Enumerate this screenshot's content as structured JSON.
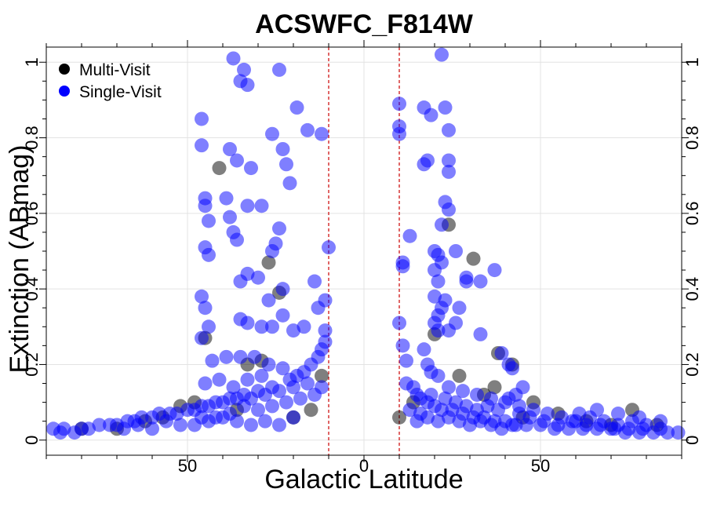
{
  "chart_data": {
    "type": "scatter",
    "title": "ACSWFC_F814W",
    "xlabel": "Galactic Latitude",
    "ylabel": "Extinction (ABmag)",
    "xlim": [
      -90,
      90
    ],
    "ylim": [
      -0.04,
      1.04
    ],
    "x_ticks": [
      -50,
      0,
      50
    ],
    "x_tick_labels": [
      "50",
      "0",
      "50"
    ],
    "y_ticks": [
      0,
      0.2,
      0.4,
      0.6,
      0.8,
      1
    ],
    "y_tick_labels": [
      "0",
      "0.2",
      "0.4",
      "0.6",
      "0.8",
      "1"
    ],
    "grid": true,
    "vlines": [
      -10,
      10
    ],
    "vline_color": "#cc0000",
    "legend_position": "top-left",
    "series": [
      {
        "name": "Multi-Visit",
        "color": "#000000",
        "points": [
          [
            -52,
            0.09
          ],
          [
            -48,
            0.1
          ],
          [
            -45,
            0.27
          ],
          [
            -41,
            0.72
          ],
          [
            -27,
            0.47
          ],
          [
            -24,
            0.39
          ],
          [
            -33,
            0.2
          ],
          [
            -29,
            0.21
          ],
          [
            -20,
            0.06
          ],
          [
            -15,
            0.08
          ],
          [
            -57,
            0.06
          ],
          [
            -62,
            0.05
          ],
          [
            -70,
            0.03
          ],
          [
            -80,
            0.03
          ],
          [
            -36,
            0.08
          ],
          [
            -12,
            0.17
          ],
          [
            10,
            0.06
          ],
          [
            24,
            0.57
          ],
          [
            31,
            0.48
          ],
          [
            38,
            0.23
          ],
          [
            42,
            0.2
          ],
          [
            37,
            0.14
          ],
          [
            48,
            0.1
          ],
          [
            55,
            0.07
          ],
          [
            63,
            0.05
          ],
          [
            76,
            0.08
          ],
          [
            83,
            0.04
          ],
          [
            20,
            0.28
          ],
          [
            27,
            0.17
          ],
          [
            34,
            0.12
          ],
          [
            45,
            0.06
          ],
          [
            14,
            0.1
          ],
          [
            70,
            0.04
          ]
        ]
      },
      {
        "name": "Single-Visit",
        "color": "#0000ff",
        "points": [
          [
            -46,
            0.85
          ],
          [
            -46,
            0.78
          ],
          [
            -45,
            0.64
          ],
          [
            -45,
            0.62
          ],
          [
            -44,
            0.58
          ],
          [
            -45,
            0.51
          ],
          [
            -44,
            0.49
          ],
          [
            -46,
            0.38
          ],
          [
            -45,
            0.35
          ],
          [
            -44,
            0.3
          ],
          [
            -46,
            0.27
          ],
          [
            -37,
            1.01
          ],
          [
            -34,
            0.98
          ],
          [
            -35,
            0.95
          ],
          [
            -33,
            0.94
          ],
          [
            -24,
            0.98
          ],
          [
            -19,
            0.88
          ],
          [
            -16,
            0.82
          ],
          [
            -12,
            0.81
          ],
          [
            -10,
            0.51
          ],
          [
            -38,
            0.77
          ],
          [
            -36,
            0.74
          ],
          [
            -32,
            0.72
          ],
          [
            -39,
            0.64
          ],
          [
            -33,
            0.62
          ],
          [
            -29,
            0.62
          ],
          [
            -26,
            0.81
          ],
          [
            -23,
            0.77
          ],
          [
            -22,
            0.73
          ],
          [
            -21,
            0.68
          ],
          [
            -24,
            0.56
          ],
          [
            -25,
            0.52
          ],
          [
            -26,
            0.5
          ],
          [
            -38,
            0.59
          ],
          [
            -37,
            0.55
          ],
          [
            -36,
            0.53
          ],
          [
            -35,
            0.42
          ],
          [
            -33,
            0.44
          ],
          [
            -30,
            0.43
          ],
          [
            -27,
            0.37
          ],
          [
            -23,
            0.4
          ],
          [
            -35,
            0.32
          ],
          [
            -33,
            0.31
          ],
          [
            -29,
            0.3
          ],
          [
            -26,
            0.3
          ],
          [
            -23,
            0.33
          ],
          [
            -20,
            0.29
          ],
          [
            -17,
            0.3
          ],
          [
            -13,
            0.35
          ],
          [
            -11,
            0.37
          ],
          [
            -14,
            0.42
          ],
          [
            -43,
            0.21
          ],
          [
            -39,
            0.22
          ],
          [
            -35,
            0.22
          ],
          [
            -31,
            0.22
          ],
          [
            -27,
            0.2
          ],
          [
            -23,
            0.19
          ],
          [
            -11,
            0.26
          ],
          [
            -11,
            0.29
          ],
          [
            -12,
            0.24
          ],
          [
            -13,
            0.22
          ],
          [
            -15,
            0.2
          ],
          [
            -17,
            0.18
          ],
          [
            -19,
            0.17
          ],
          [
            -21,
            0.16
          ],
          [
            -26,
            0.14
          ],
          [
            -30,
            0.13
          ],
          [
            -34,
            0.12
          ],
          [
            -38,
            0.11
          ],
          [
            -42,
            0.1
          ],
          [
            -46,
            0.09
          ],
          [
            -50,
            0.08
          ],
          [
            -55,
            0.07
          ],
          [
            -60,
            0.06
          ],
          [
            -65,
            0.05
          ],
          [
            -70,
            0.04
          ],
          [
            -75,
            0.04
          ],
          [
            -80,
            0.03
          ],
          [
            -85,
            0.03
          ],
          [
            -88,
            0.03
          ],
          [
            -86,
            0.02
          ],
          [
            -82,
            0.02
          ],
          [
            -78,
            0.03
          ],
          [
            -72,
            0.04
          ],
          [
            -67,
            0.05
          ],
          [
            -63,
            0.06
          ],
          [
            -58,
            0.07
          ],
          [
            -53,
            0.07
          ],
          [
            -48,
            0.08
          ],
          [
            -44,
            0.09
          ],
          [
            -40,
            0.1
          ],
          [
            -36,
            0.11
          ],
          [
            -32,
            0.11
          ],
          [
            -28,
            0.12
          ],
          [
            -24,
            0.13
          ],
          [
            -20,
            0.14
          ],
          [
            -16,
            0.15
          ],
          [
            -44,
            0.05
          ],
          [
            -40,
            0.06
          ],
          [
            -36,
            0.05
          ],
          [
            -32,
            0.04
          ],
          [
            -28,
            0.05
          ],
          [
            -24,
            0.04
          ],
          [
            -20,
            0.06
          ],
          [
            -48,
            0.04
          ],
          [
            -52,
            0.04
          ],
          [
            -56,
            0.05
          ],
          [
            -60,
            0.03
          ],
          [
            -64,
            0.04
          ],
          [
            -68,
            0.03
          ],
          [
            -30,
            0.08
          ],
          [
            -34,
            0.09
          ],
          [
            -38,
            0.07
          ],
          [
            -42,
            0.06
          ],
          [
            -46,
            0.06
          ],
          [
            -26,
            0.09
          ],
          [
            -22,
            0.1
          ],
          [
            -18,
            0.11
          ],
          [
            -14,
            0.12
          ],
          [
            -12,
            0.14
          ],
          [
            -45,
            0.15
          ],
          [
            -41,
            0.16
          ],
          [
            -37,
            0.14
          ],
          [
            -33,
            0.16
          ],
          [
            -29,
            0.17
          ],
          [
            10,
            0.89
          ],
          [
            10,
            0.83
          ],
          [
            10,
            0.81
          ],
          [
            10,
            0.31
          ],
          [
            11,
            0.47
          ],
          [
            11,
            0.46
          ],
          [
            11,
            0.25
          ],
          [
            12,
            0.21
          ],
          [
            12,
            0.15
          ],
          [
            13,
            0.54
          ],
          [
            17,
            0.73
          ],
          [
            18,
            0.74
          ],
          [
            17,
            0.88
          ],
          [
            19,
            0.86
          ],
          [
            22,
            1.02
          ],
          [
            23,
            0.88
          ],
          [
            24,
            0.82
          ],
          [
            24,
            0.74
          ],
          [
            24,
            0.71
          ],
          [
            23,
            0.63
          ],
          [
            24,
            0.61
          ],
          [
            22,
            0.57
          ],
          [
            20,
            0.5
          ],
          [
            21,
            0.49
          ],
          [
            22,
            0.47
          ],
          [
            20,
            0.45
          ],
          [
            21,
            0.42
          ],
          [
            23,
            0.37
          ],
          [
            22,
            0.35
          ],
          [
            20,
            0.38
          ],
          [
            21,
            0.33
          ],
          [
            20,
            0.31
          ],
          [
            21,
            0.29
          ],
          [
            24,
            0.29
          ],
          [
            26,
            0.31
          ],
          [
            27,
            0.35
          ],
          [
            26,
            0.5
          ],
          [
            29,
            0.42
          ],
          [
            29,
            0.43
          ],
          [
            33,
            0.42
          ],
          [
            33,
            0.28
          ],
          [
            37,
            0.45
          ],
          [
            39,
            0.23
          ],
          [
            41,
            0.2
          ],
          [
            42,
            0.19
          ],
          [
            17,
            0.24
          ],
          [
            18,
            0.2
          ],
          [
            19,
            0.18
          ],
          [
            21,
            0.17
          ],
          [
            14,
            0.14
          ],
          [
            15,
            0.12
          ],
          [
            16,
            0.11
          ],
          [
            18,
            0.1
          ],
          [
            20,
            0.09
          ],
          [
            22,
            0.08
          ],
          [
            25,
            0.08
          ],
          [
            28,
            0.07
          ],
          [
            31,
            0.06
          ],
          [
            34,
            0.06
          ],
          [
            37,
            0.05
          ],
          [
            40,
            0.05
          ],
          [
            43,
            0.04
          ],
          [
            46,
            0.04
          ],
          [
            50,
            0.04
          ],
          [
            54,
            0.03
          ],
          [
            58,
            0.03
          ],
          [
            62,
            0.03
          ],
          [
            66,
            0.03
          ],
          [
            70,
            0.03
          ],
          [
            74,
            0.02
          ],
          [
            78,
            0.02
          ],
          [
            82,
            0.02
          ],
          [
            86,
            0.02
          ],
          [
            89,
            0.02
          ],
          [
            84,
            0.03
          ],
          [
            80,
            0.04
          ],
          [
            76,
            0.05
          ],
          [
            72,
            0.04
          ],
          [
            68,
            0.05
          ],
          [
            64,
            0.06
          ],
          [
            60,
            0.05
          ],
          [
            56,
            0.06
          ],
          [
            52,
            0.07
          ],
          [
            48,
            0.08
          ],
          [
            44,
            0.09
          ],
          [
            40,
            0.1
          ],
          [
            36,
            0.11
          ],
          [
            32,
            0.12
          ],
          [
            28,
            0.13
          ],
          [
            24,
            0.14
          ],
          [
            45,
            0.14
          ],
          [
            43,
            0.12
          ],
          [
            41,
            0.11
          ],
          [
            47,
            0.06
          ],
          [
            51,
            0.05
          ],
          [
            55,
            0.04
          ],
          [
            59,
            0.05
          ],
          [
            63,
            0.04
          ],
          [
            67,
            0.04
          ],
          [
            71,
            0.03
          ],
          [
            75,
            0.03
          ],
          [
            79,
            0.03
          ],
          [
            15,
            0.05
          ],
          [
            18,
            0.06
          ],
          [
            21,
            0.05
          ],
          [
            24,
            0.06
          ],
          [
            27,
            0.05
          ],
          [
            30,
            0.04
          ],
          [
            33,
            0.05
          ],
          [
            36,
            0.04
          ],
          [
            39,
            0.03
          ],
          [
            42,
            0.04
          ],
          [
            13,
            0.08
          ],
          [
            16,
            0.07
          ],
          [
            19,
            0.12
          ],
          [
            23,
            0.11
          ],
          [
            26,
            0.1
          ],
          [
            29,
            0.09
          ],
          [
            32,
            0.08
          ],
          [
            35,
            0.09
          ],
          [
            38,
            0.08
          ],
          [
            44,
            0.07
          ],
          [
            61,
            0.07
          ],
          [
            66,
            0.08
          ],
          [
            72,
            0.07
          ],
          [
            78,
            0.06
          ],
          [
            84,
            0.05
          ]
        ]
      }
    ]
  }
}
